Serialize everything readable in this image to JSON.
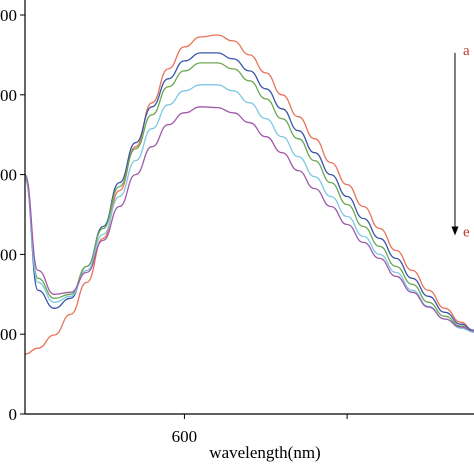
{
  "chart_data": {
    "type": "line",
    "xlabel": "wavelength(nm)",
    "ylabel": "",
    "xlim": [
      502,
      778
    ],
    "ylim": [
      0,
      1000
    ],
    "x_ticks": [
      {
        "value": 600,
        "label": "600"
      },
      {
        "value": 700,
        "label": ""
      }
    ],
    "y_ticks": [
      {
        "value": 0,
        "label": "0"
      },
      {
        "value": 200,
        "label": "000"
      },
      {
        "value": 400,
        "label": "000"
      },
      {
        "value": 600,
        "label": "000"
      },
      {
        "value": 800,
        "label": "000"
      },
      {
        "value": 1000,
        "label": "000"
      }
    ],
    "grid": false,
    "legend": "none",
    "arrow": {
      "from_label": "a",
      "to_label": "e",
      "x_data": 770,
      "y_from": 880,
      "y_to": 450,
      "color": "#c0392b"
    },
    "series": [
      {
        "color": "#e8735a",
        "x": [
          502,
          510,
          520,
          530,
          540,
          550,
          560,
          570,
          580,
          590,
          600,
          610,
          620,
          630,
          640,
          650,
          660,
          670,
          680,
          690,
          700,
          710,
          720,
          730,
          740,
          750,
          760,
          770,
          778
        ],
        "y": [
          150,
          165,
          198,
          250,
          330,
          440,
          560,
          670,
          780,
          865,
          920,
          945,
          950,
          935,
          900,
          855,
          800,
          745,
          690,
          630,
          575,
          520,
          465,
          410,
          360,
          310,
          265,
          230,
          205
        ]
      },
      {
        "color": "#3a55a8",
        "x": [
          502,
          510,
          520,
          530,
          540,
          550,
          560,
          570,
          580,
          590,
          600,
          610,
          620,
          630,
          640,
          650,
          660,
          670,
          680,
          690,
          700,
          710,
          720,
          730,
          740,
          750,
          760,
          770,
          778
        ],
        "y": [
          590,
          310,
          265,
          290,
          370,
          470,
          580,
          680,
          770,
          840,
          885,
          905,
          905,
          890,
          860,
          815,
          765,
          710,
          655,
          600,
          545,
          490,
          440,
          390,
          340,
          295,
          255,
          225,
          210
        ]
      },
      {
        "color": "#6aa84f",
        "x": [
          502,
          510,
          520,
          530,
          540,
          550,
          560,
          570,
          580,
          590,
          600,
          610,
          620,
          630,
          640,
          650,
          660,
          670,
          680,
          690,
          700,
          710,
          720,
          730,
          740,
          750,
          760,
          770,
          778
        ],
        "y": [
          590,
          340,
          290,
          300,
          370,
          465,
          570,
          665,
          750,
          820,
          860,
          880,
          880,
          865,
          835,
          790,
          740,
          690,
          635,
          580,
          525,
          470,
          420,
          370,
          325,
          280,
          245,
          220,
          208
        ]
      },
      {
        "color": "#7ec8e3",
        "x": [
          502,
          510,
          520,
          530,
          540,
          550,
          560,
          570,
          580,
          590,
          600,
          610,
          620,
          630,
          640,
          650,
          660,
          670,
          680,
          690,
          700,
          710,
          720,
          730,
          740,
          750,
          760,
          770,
          778
        ],
        "y": [
          595,
          330,
          280,
          295,
          360,
          450,
          545,
          635,
          715,
          775,
          810,
          825,
          825,
          810,
          780,
          740,
          695,
          645,
          595,
          545,
          495,
          445,
          400,
          355,
          310,
          270,
          238,
          215,
          205
        ]
      },
      {
        "color": "#a05aa8",
        "x": [
          502,
          510,
          520,
          530,
          540,
          550,
          560,
          570,
          580,
          590,
          600,
          610,
          620,
          630,
          640,
          650,
          660,
          670,
          680,
          690,
          700,
          710,
          720,
          730,
          740,
          750,
          760,
          770,
          778
        ],
        "y": [
          600,
          360,
          300,
          305,
          355,
          435,
          520,
          600,
          670,
          725,
          755,
          770,
          768,
          755,
          730,
          695,
          655,
          610,
          565,
          520,
          475,
          430,
          390,
          345,
          305,
          268,
          238,
          218,
          208
        ]
      }
    ]
  }
}
